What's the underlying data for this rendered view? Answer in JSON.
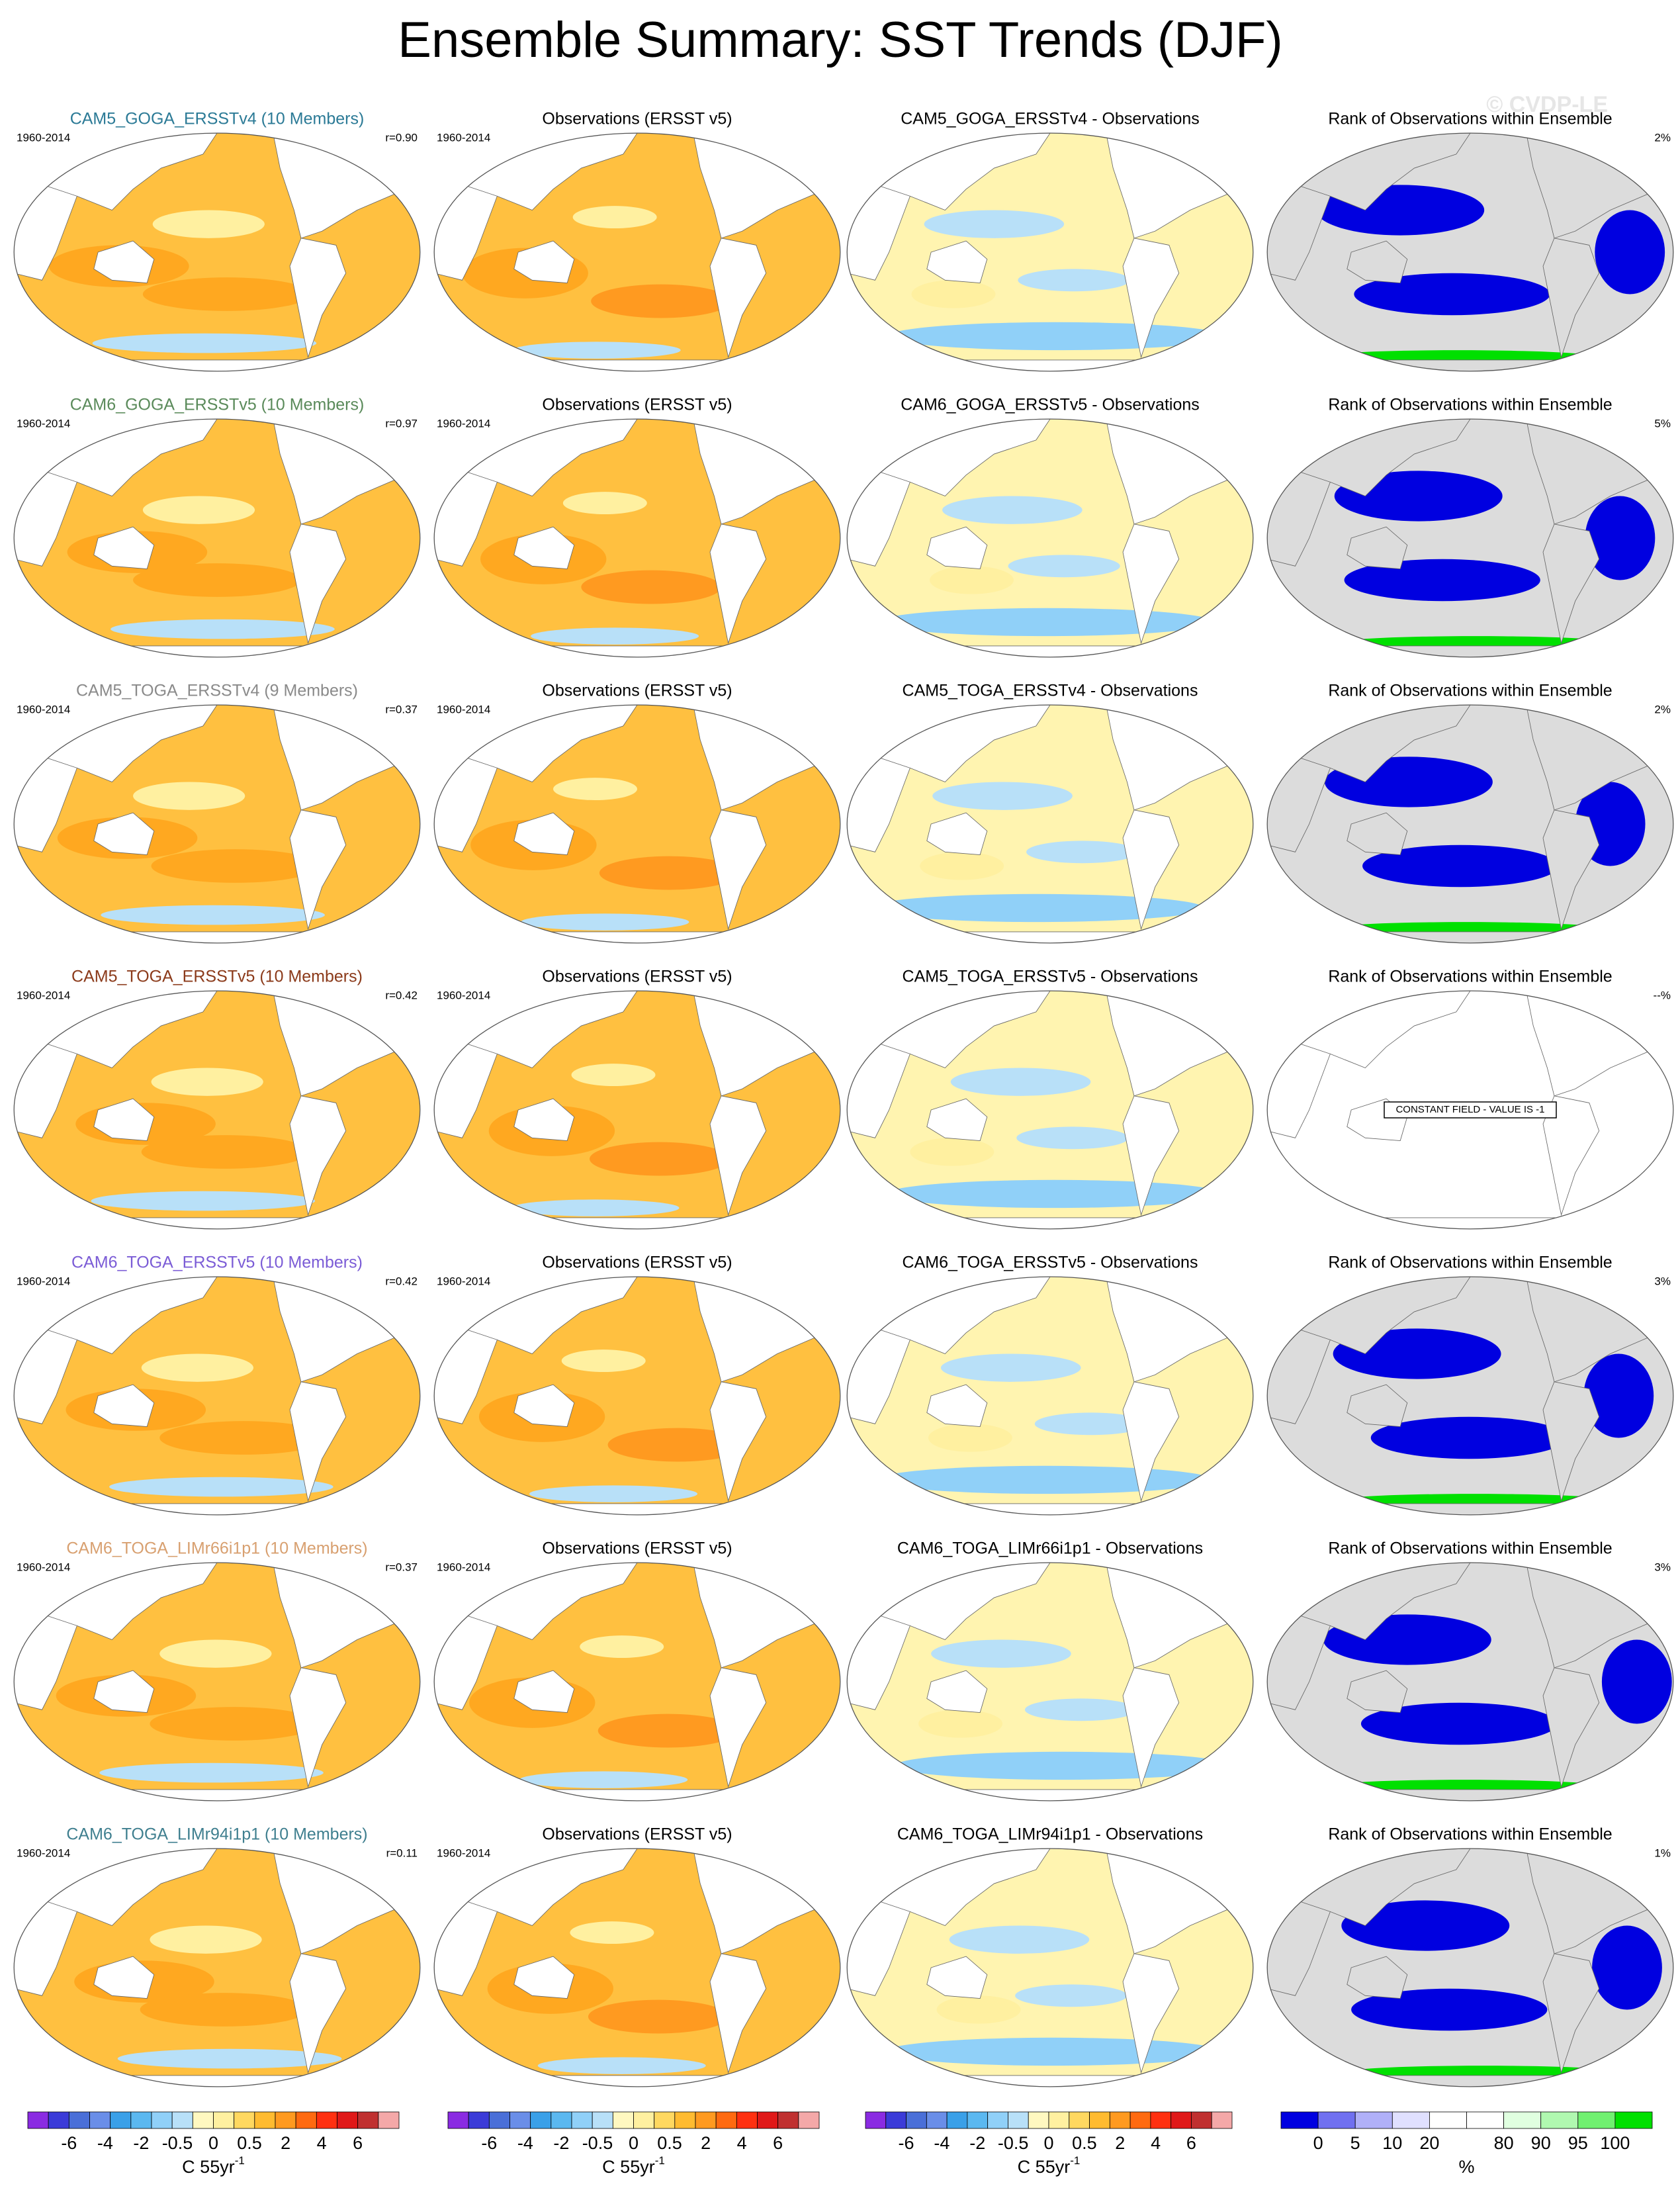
{
  "title": "Ensemble Summary: SST Trends (DJF)",
  "watermark": "© CVDP-LE",
  "rows": [
    {
      "model": {
        "title": "CAM5_GOGA_ERSSTv4 (10 Members)",
        "color": "#2b7a96",
        "period": "1960-2014",
        "r": "r=0.90"
      },
      "obs": {
        "title": "Observations (ERSST v5)",
        "period": "1960-2014"
      },
      "diff": {
        "title": "CAM5_GOGA_ERSSTv4 - Observations"
      },
      "rank": {
        "title": "Rank of Observations within Ensemble",
        "percent": "2%"
      }
    },
    {
      "model": {
        "title": "CAM6_GOGA_ERSSTv5 (10 Members)",
        "color": "#5a8a5a",
        "period": "1960-2014",
        "r": "r=0.97"
      },
      "obs": {
        "title": "Observations (ERSST v5)",
        "period": "1960-2014"
      },
      "diff": {
        "title": "CAM6_GOGA_ERSSTv5 - Observations"
      },
      "rank": {
        "title": "Rank of Observations within Ensemble",
        "percent": "5%"
      }
    },
    {
      "model": {
        "title": "CAM5_TOGA_ERSSTv4 (9 Members)",
        "color": "#8a8a8a",
        "period": "1960-2014",
        "r": "r=0.37"
      },
      "obs": {
        "title": "Observations (ERSST v5)",
        "period": "1960-2014"
      },
      "diff": {
        "title": "CAM5_TOGA_ERSSTv4 - Observations"
      },
      "rank": {
        "title": "Rank of Observations within Ensemble",
        "percent": "2%"
      }
    },
    {
      "model": {
        "title": "CAM5_TOGA_ERSSTv5 (10 Members)",
        "color": "#8b3a1a",
        "period": "1960-2014",
        "r": "r=0.42"
      },
      "obs": {
        "title": "Observations (ERSST v5)",
        "period": "1960-2014"
      },
      "diff": {
        "title": "CAM5_TOGA_ERSSTv5 - Observations"
      },
      "rank": {
        "title": "Rank of Observations within Ensemble",
        "percent": "--%",
        "note": "CONSTANT FIELD - VALUE IS -1"
      }
    },
    {
      "model": {
        "title": "CAM6_TOGA_ERSSTv5 (10 Members)",
        "color": "#7b5cd6",
        "period": "1960-2014",
        "r": "r=0.42"
      },
      "obs": {
        "title": "Observations (ERSST v5)",
        "period": "1960-2014"
      },
      "diff": {
        "title": "CAM6_TOGA_ERSSTv5 - Observations"
      },
      "rank": {
        "title": "Rank of Observations within Ensemble",
        "percent": "3%"
      }
    },
    {
      "model": {
        "title": "CAM6_TOGA_LIMr66i1p1 (10 Members)",
        "color": "#d8a070",
        "period": "1960-2014",
        "r": "r=0.37"
      },
      "obs": {
        "title": "Observations (ERSST v5)",
        "period": "1960-2014"
      },
      "diff": {
        "title": "CAM6_TOGA_LIMr66i1p1 - Observations"
      },
      "rank": {
        "title": "Rank of Observations within Ensemble",
        "percent": "3%"
      }
    },
    {
      "model": {
        "title": "CAM6_TOGA_LIMr94i1p1 (10 Members)",
        "color": "#3f7f8f",
        "period": "1960-2014",
        "r": "r=0.11"
      },
      "obs": {
        "title": "Observations (ERSST v5)",
        "period": "1960-2014"
      },
      "diff": {
        "title": "CAM6_TOGA_LIMr94i1p1 - Observations"
      },
      "rank": {
        "title": "Rank of Observations within Ensemble",
        "percent": "1%"
      }
    }
  ],
  "colorbars": [
    {
      "labels": [
        "-6",
        "-4",
        "-2",
        "-0.5",
        "0",
        "0.5",
        "2",
        "4",
        "6"
      ],
      "unit": "C 55yr",
      "exponent": "-1",
      "colors": [
        "#8a2be2",
        "#3b3bd8",
        "#4a6fd8",
        "#6a8ee8",
        "#3aa0e8",
        "#5bb8f0",
        "#90d0f8",
        "#b8e0f8",
        "#fff8c0",
        "#fff0a0",
        "#ffd860",
        "#ffbb30",
        "#ff9a20",
        "#ff6a10",
        "#ff3010",
        "#e01818",
        "#c03030",
        "#f4a8a8"
      ]
    },
    {
      "labels": [
        "-6",
        "-4",
        "-2",
        "-0.5",
        "0",
        "0.5",
        "2",
        "4",
        "6"
      ],
      "unit": "C 55yr",
      "exponent": "-1",
      "colors": [
        "#8a2be2",
        "#3b3bd8",
        "#4a6fd8",
        "#6a8ee8",
        "#3aa0e8",
        "#5bb8f0",
        "#90d0f8",
        "#b8e0f8",
        "#fff8c0",
        "#fff0a0",
        "#ffd860",
        "#ffbb30",
        "#ff9a20",
        "#ff6a10",
        "#ff3010",
        "#e01818",
        "#c03030",
        "#f4a8a8"
      ]
    },
    {
      "labels": [
        "-6",
        "-4",
        "-2",
        "-0.5",
        "0",
        "0.5",
        "2",
        "4",
        "6"
      ],
      "unit": "C 55yr",
      "exponent": "-1",
      "colors": [
        "#8a2be2",
        "#3b3bd8",
        "#4a6fd8",
        "#6a8ee8",
        "#3aa0e8",
        "#5bb8f0",
        "#90d0f8",
        "#b8e0f8",
        "#fff8c0",
        "#fff0a0",
        "#ffd860",
        "#ffbb30",
        "#ff9a20",
        "#ff6a10",
        "#ff3010",
        "#e01818",
        "#c03030",
        "#f4a8a8"
      ]
    },
    {
      "labels": [
        "0",
        "5",
        "10",
        "20",
        "80",
        "90",
        "95",
        "100"
      ],
      "unit": "%",
      "colors": [
        "#0000e0",
        "#7070f0",
        "#b0b0f8",
        "#e0e0ff",
        "#ffffff",
        "#ffffff",
        "#e0ffe0",
        "#b0f8b0",
        "#70f070",
        "#00e000"
      ]
    }
  ]
}
